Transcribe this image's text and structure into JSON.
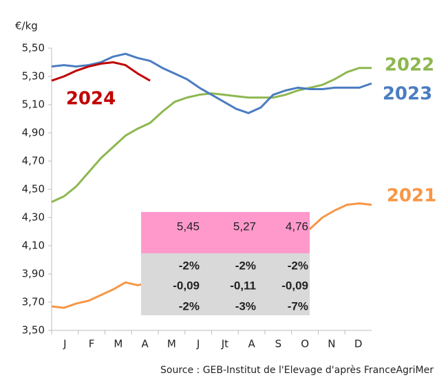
{
  "chart_data": {
    "type": "line",
    "y_label": "€/kg",
    "source": "Source : GEB-Institut de l'Elevage d'après FranceAgriMer",
    "x": [
      0,
      2,
      4,
      6,
      8,
      10,
      12,
      14,
      16,
      18,
      20,
      22,
      24,
      26,
      28,
      30,
      32,
      34,
      36,
      38,
      40,
      42,
      44,
      46,
      48,
      50,
      52
    ],
    "xlim": [
      0,
      52
    ],
    "months": [
      "J",
      "F",
      "M",
      "A",
      "M",
      "J",
      "Jt",
      "A",
      "S",
      "O",
      "N",
      "D"
    ],
    "ylim": [
      3.5,
      5.5
    ],
    "yticks": [
      {
        "value": 5.5,
        "label": "5,50"
      },
      {
        "value": 5.3,
        "label": "5,30"
      },
      {
        "value": 5.1,
        "label": "5,10"
      },
      {
        "value": 4.9,
        "label": "4,90"
      },
      {
        "value": 4.7,
        "label": "4,70"
      },
      {
        "value": 4.5,
        "label": "4,50"
      },
      {
        "value": 4.3,
        "label": "4,30"
      },
      {
        "value": 4.1,
        "label": "4,10"
      },
      {
        "value": 3.9,
        "label": "3,90"
      },
      {
        "value": 3.7,
        "label": "3,70"
      },
      {
        "value": 3.5,
        "label": "3,50"
      }
    ],
    "series": [
      {
        "name": "2021",
        "color": "#f79646",
        "values": [
          3.67,
          3.66,
          3.69,
          3.71,
          3.75,
          3.79,
          3.84,
          3.82,
          3.84,
          3.86,
          3.88,
          3.9,
          3.92,
          3.94,
          3.96,
          3.98,
          4.0,
          4.03,
          4.06,
          4.1,
          4.15,
          4.22,
          4.3,
          4.35,
          4.39,
          4.4,
          4.39
        ]
      },
      {
        "name": "2022",
        "color": "#8db750",
        "values": [
          4.41,
          4.45,
          4.52,
          4.62,
          4.72,
          4.8,
          4.88,
          4.93,
          4.97,
          5.05,
          5.12,
          5.15,
          5.17,
          5.18,
          5.17,
          5.16,
          5.15,
          5.15,
          5.15,
          5.17,
          5.2,
          5.22,
          5.24,
          5.28,
          5.33,
          5.36,
          5.36
        ]
      },
      {
        "name": "2023",
        "color": "#4a7cc1",
        "values": [
          5.37,
          5.38,
          5.37,
          5.38,
          5.4,
          5.44,
          5.46,
          5.43,
          5.41,
          5.36,
          5.32,
          5.28,
          5.22,
          5.17,
          5.12,
          5.07,
          5.04,
          5.08,
          5.17,
          5.2,
          5.22,
          5.21,
          5.21,
          5.22,
          5.22,
          5.22,
          5.25
        ]
      },
      {
        "name": "2024",
        "color": "#c00000",
        "values": [
          5.27,
          5.3,
          5.34,
          5.37,
          5.39,
          5.4,
          5.38,
          5.32,
          5.27,
          null,
          null,
          null,
          null,
          null,
          null,
          null,
          null,
          null,
          null,
          null,
          null,
          null,
          null,
          null,
          null,
          null,
          null
        ]
      }
    ]
  },
  "table": {
    "rows": [
      [
        "5,45",
        "5,27",
        "4,76"
      ],
      [
        "-2%",
        "-2%",
        "-2%"
      ],
      [
        "-0,09",
        "-0,11",
        "-0,09"
      ],
      [
        "-2%",
        "-3%",
        "-7%"
      ]
    ]
  }
}
